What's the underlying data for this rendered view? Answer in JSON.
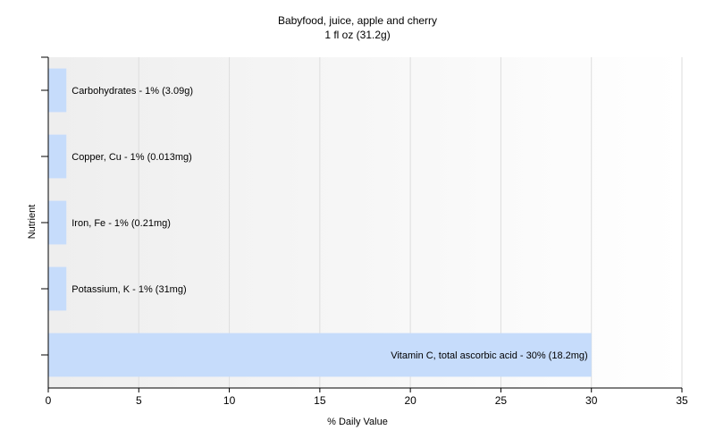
{
  "chart_data": {
    "type": "bar",
    "orientation": "horizontal",
    "title": "Babyfood, juice, apple and cherry",
    "subtitle": "1 fl oz (31.2g)",
    "xlabel": "% Daily Value",
    "ylabel": "Nutrient",
    "xlim": [
      0,
      35
    ],
    "xticks": [
      0,
      5,
      10,
      15,
      20,
      25,
      30,
      35
    ],
    "grid": true,
    "bar_color": "#c6dcfb",
    "categories": [
      "Carbohydrates",
      "Copper, Cu",
      "Iron, Fe",
      "Potassium, K",
      "Vitamin C, total ascorbic acid"
    ],
    "values": [
      1,
      1,
      1,
      1,
      30
    ],
    "labels": [
      "Carbohydrates - 1% (3.09g)",
      "Copper, Cu - 1% (0.013mg)",
      "Iron, Fe - 1% (0.21mg)",
      "Potassium, K - 1% (31mg)",
      "Vitamin C, total ascorbic acid - 30% (18.2mg)"
    ]
  }
}
